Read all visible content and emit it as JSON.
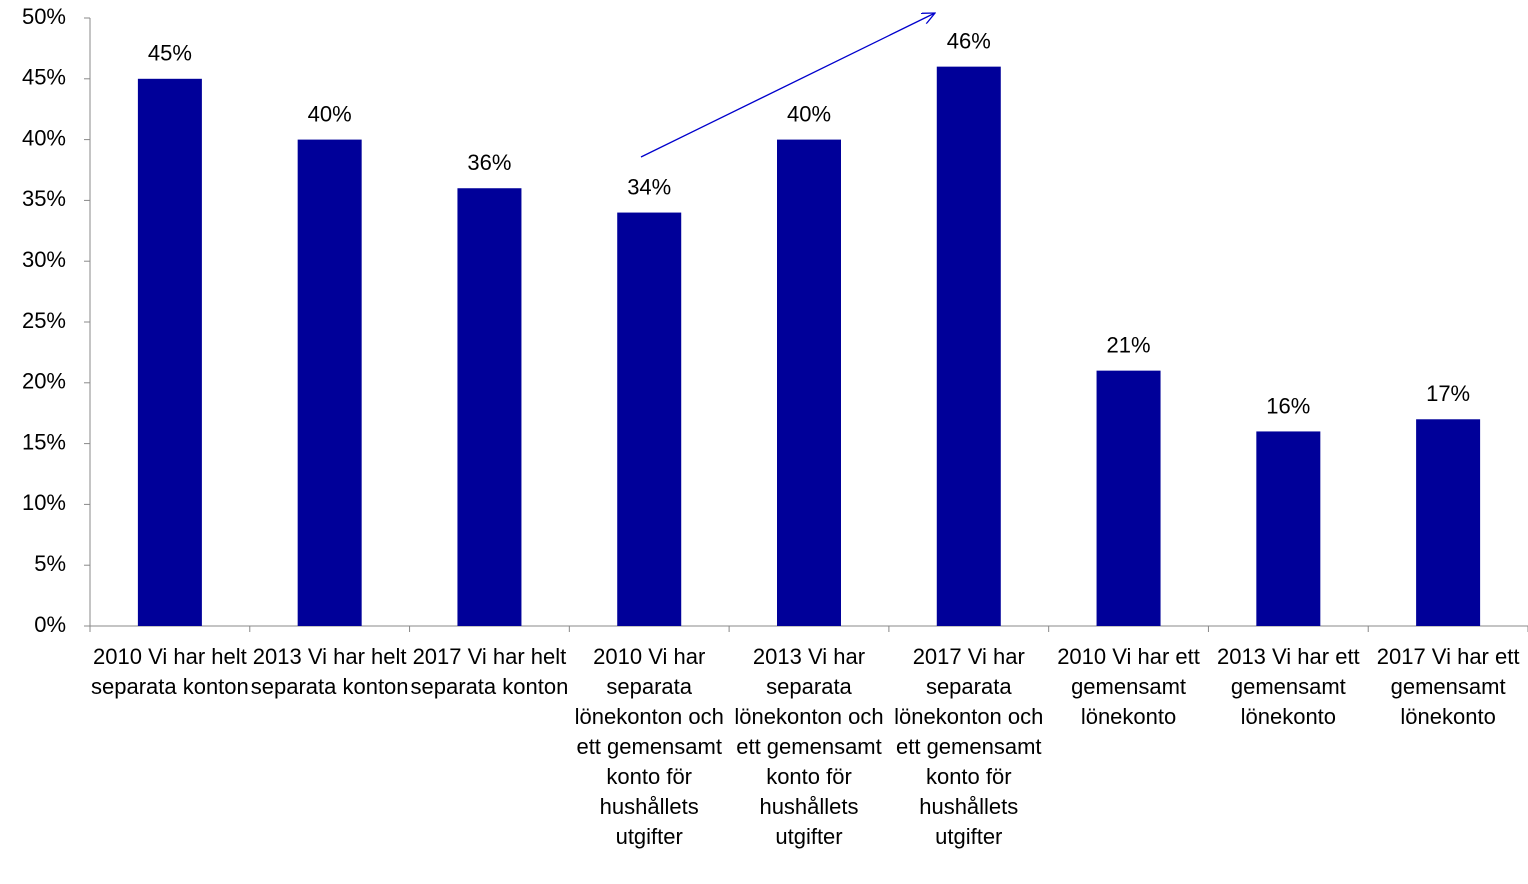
{
  "chart_data": {
    "type": "bar",
    "categories": [
      "2010 Vi har helt separata konton",
      "2013 Vi har helt separata konton",
      "2017 Vi har helt separata konton",
      "2010 Vi har separata lönekonton och ett gemensamt konto för hushållets utgifter",
      "2013 Vi har separata lönekonton och ett gemensamt konto för hushållets utgifter",
      "2017 Vi har separata lönekonton och ett gemensamt konto för hushållets utgifter",
      "2010 Vi har ett gemensamt lönekonto",
      "2013 Vi har ett gemensamt lönekonto",
      "2017 Vi har ett gemensamt lönekonto"
    ],
    "values": [
      45,
      40,
      36,
      34,
      40,
      46,
      21,
      16,
      17
    ],
    "value_labels": [
      "45%",
      "40%",
      "36%",
      "34%",
      "40%",
      "46%",
      "21%",
      "16%",
      "17%"
    ],
    "color": "#000099",
    "ylim": [
      0,
      50
    ],
    "yticks": [
      {
        "value": 0,
        "label": "0%"
      },
      {
        "value": 5,
        "label": "5%"
      },
      {
        "value": 10,
        "label": "10%"
      },
      {
        "value": 15,
        "label": "15%"
      },
      {
        "value": 20,
        "label": "20%"
      },
      {
        "value": 25,
        "label": "25%"
      },
      {
        "value": 30,
        "label": "30%"
      },
      {
        "value": 35,
        "label": "35%"
      },
      {
        "value": 40,
        "label": "40%"
      },
      {
        "value": 45,
        "label": "45%"
      },
      {
        "value": 50,
        "label": "50%"
      }
    ],
    "grid": false
  }
}
